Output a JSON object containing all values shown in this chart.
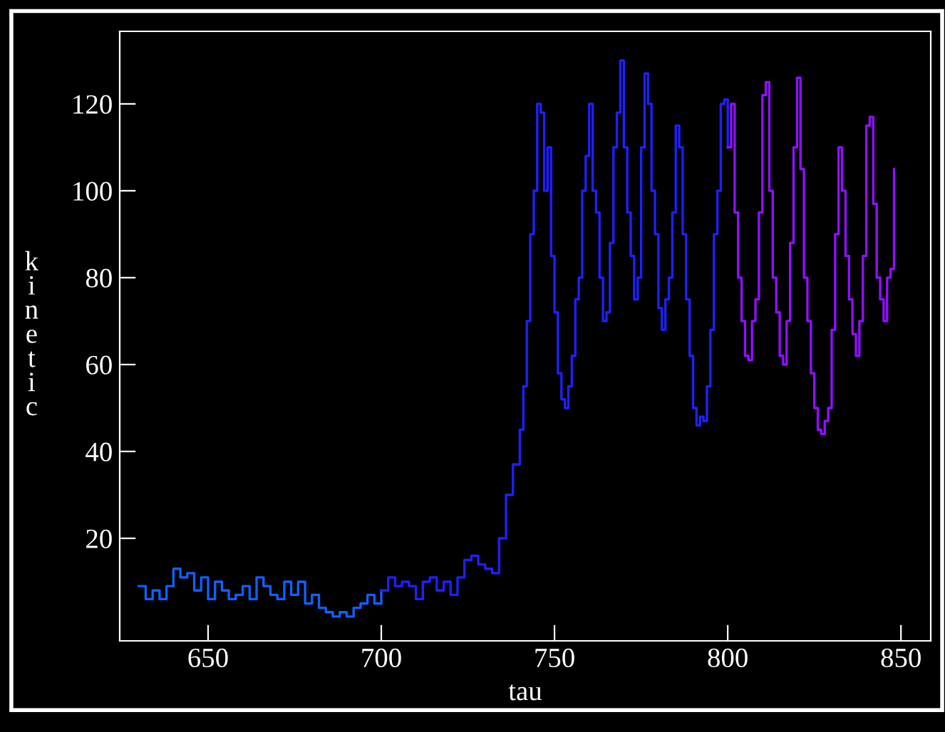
{
  "chart_data": {
    "type": "step",
    "xlabel": "tau",
    "ylabel": "kinetic",
    "xlim": [
      624.5,
      858.6
    ],
    "ylim": [
      -3.6,
      136.7
    ],
    "xticks": [
      650,
      700,
      750,
      800,
      850
    ],
    "yticks": [
      20,
      40,
      60,
      80,
      100,
      120
    ],
    "grid": false,
    "marker": "none",
    "line_style": "solid",
    "series": [
      {
        "color": "#1060ff",
        "x": [
          630,
          632,
          634,
          636,
          638,
          640,
          642,
          644,
          646,
          648,
          650,
          652,
          654,
          656,
          658,
          660,
          662,
          664,
          666,
          668,
          670,
          672,
          674,
          676,
          678,
          680,
          682,
          684,
          686,
          688,
          690,
          692,
          694,
          696,
          698,
          700
        ],
        "values": [
          9,
          6,
          8,
          6,
          9,
          13,
          11,
          12,
          8,
          11,
          6,
          10,
          8,
          6,
          7,
          9,
          6,
          11,
          9,
          7,
          6,
          10,
          7,
          10,
          5,
          7,
          4,
          3,
          2,
          3,
          2,
          4,
          5,
          7,
          5,
          8
        ]
      },
      {
        "color": "#2020ff",
        "x": [
          700,
          702,
          704,
          706,
          708,
          710,
          712,
          714,
          716,
          718,
          720,
          722,
          724,
          726,
          728,
          730,
          732,
          734,
          736,
          738,
          740,
          741,
          742,
          743,
          744,
          745,
          746,
          747,
          748,
          749,
          750,
          751,
          752,
          753,
          754,
          755,
          756,
          757,
          758,
          759,
          760,
          761,
          762,
          763,
          764,
          765,
          766,
          767,
          768,
          769,
          770,
          771,
          772,
          773,
          774,
          775,
          776,
          777,
          778,
          779,
          780,
          781,
          782,
          783,
          784,
          785,
          786,
          787,
          788,
          789,
          790,
          791,
          792,
          793,
          794,
          795,
          796,
          797,
          798,
          799,
          800
        ],
        "values": [
          8,
          11,
          9,
          10,
          9,
          6,
          10,
          11,
          8,
          10,
          7,
          11,
          15,
          16,
          14,
          13,
          12,
          20,
          30,
          37,
          45,
          55,
          70,
          90,
          100,
          120,
          118,
          100,
          110,
          85,
          72,
          58,
          52,
          50,
          55,
          62,
          75,
          80,
          100,
          108,
          120,
          100,
          95,
          80,
          70,
          72,
          88,
          110,
          118,
          130,
          110,
          95,
          85,
          75,
          80,
          110,
          127,
          120,
          100,
          90,
          73,
          68,
          75,
          80,
          95,
          115,
          110,
          90,
          75,
          62,
          50,
          46,
          48,
          47,
          55,
          68,
          90,
          100,
          120,
          121,
          110
        ]
      },
      {
        "color": "#9010ff",
        "x": [
          800,
          801,
          802,
          803,
          804,
          805,
          806,
          807,
          808,
          809,
          810,
          811,
          812,
          813,
          814,
          815,
          816,
          817,
          818,
          819,
          820,
          821,
          822,
          823,
          824,
          825,
          826,
          827,
          828,
          829,
          830,
          831,
          832,
          833,
          834,
          835,
          836,
          837,
          838,
          839,
          840,
          841,
          842,
          843,
          844,
          845,
          846,
          847,
          848
        ],
        "values": [
          110,
          120,
          95,
          80,
          70,
          62,
          61,
          70,
          75,
          95,
          122,
          125,
          100,
          80,
          72,
          62,
          60,
          70,
          88,
          110,
          126,
          105,
          80,
          70,
          58,
          50,
          45,
          44,
          47,
          50,
          68,
          90,
          110,
          100,
          85,
          75,
          67,
          62,
          70,
          85,
          115,
          117,
          97,
          80,
          75,
          70,
          80,
          82,
          105
        ]
      }
    ]
  }
}
